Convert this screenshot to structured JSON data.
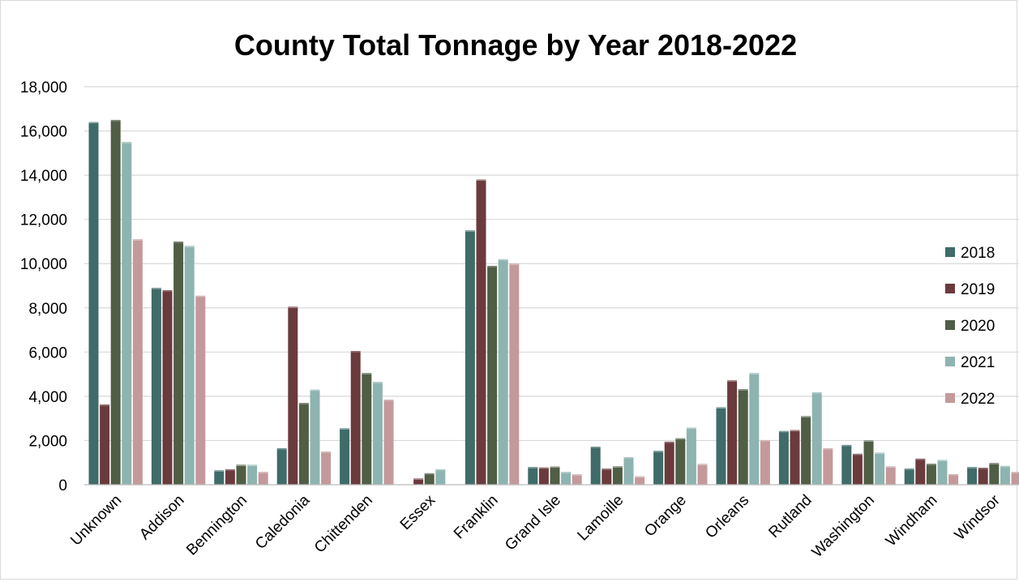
{
  "chart_data": {
    "type": "bar",
    "title": "County Total Tonnage by Year 2018-2022",
    "xlabel": "",
    "ylabel": "",
    "ylim": [
      0,
      18000
    ],
    "y_ticks": [
      "0",
      "2,000",
      "4,000",
      "6,000",
      "8,000",
      "10,000",
      "12,000",
      "14,000",
      "16,000",
      "18,000"
    ],
    "y_tick_values": [
      0,
      2000,
      4000,
      6000,
      8000,
      10000,
      12000,
      14000,
      16000,
      18000
    ],
    "grid": true,
    "legend_position": "right",
    "categories": [
      "Unknown",
      "Addison",
      "Bennington",
      "Caledonia",
      "Chittenden",
      "Essex",
      "Franklin",
      "Grand Isle",
      "Lamoille",
      "Orange",
      "Orleans",
      "Rutland",
      "Washington",
      "Windham",
      "Windsor"
    ],
    "series": [
      {
        "name": "2018",
        "color": "#3f6b68",
        "values": [
          16400,
          8900,
          650,
          1650,
          2550,
          0,
          11500,
          800,
          1720,
          1530,
          3500,
          2430,
          1800,
          730,
          800
        ]
      },
      {
        "name": "2019",
        "color": "#6b3a3d",
        "values": [
          3630,
          8800,
          700,
          8050,
          6050,
          280,
          13800,
          780,
          730,
          1950,
          4720,
          2470,
          1400,
          1180,
          770
        ]
      },
      {
        "name": "2020",
        "color": "#4f5e45",
        "values": [
          16500,
          11000,
          900,
          3700,
          5050,
          520,
          9900,
          820,
          830,
          2100,
          4320,
          3100,
          2000,
          950,
          980
        ]
      },
      {
        "name": "2021",
        "color": "#8db4b0",
        "values": [
          15500,
          10800,
          900,
          4300,
          4650,
          700,
          10200,
          580,
          1250,
          2580,
          5050,
          4180,
          1450,
          1120,
          850
        ]
      },
      {
        "name": "2022",
        "color": "#c4999b",
        "values": [
          11100,
          8550,
          580,
          1500,
          3850,
          0,
          10000,
          470,
          380,
          940,
          2020,
          1650,
          830,
          480,
          580
        ]
      }
    ]
  }
}
